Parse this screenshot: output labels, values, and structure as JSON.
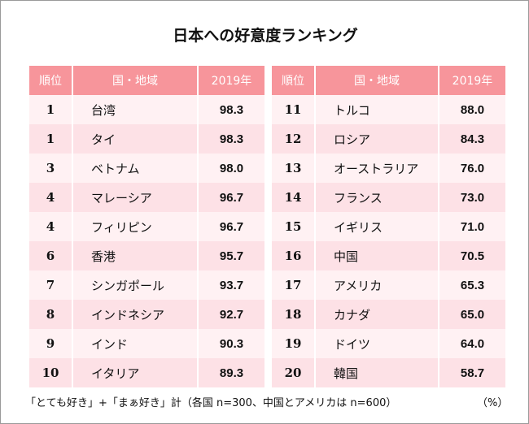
{
  "title": "日本への好意度ランキング",
  "headers": [
    "順位",
    "国・地域",
    "2019年"
  ],
  "colors": {
    "header": "#f7959b",
    "rank": "#e3637c",
    "row_light": "#fff1f3",
    "row_dark": "#fde1e6"
  },
  "chart_data": {
    "type": "table",
    "title": "日本への好意度ランキング",
    "columns": [
      "順位",
      "国・地域",
      "2019年"
    ],
    "rows": [
      [
        "1",
        "台湾",
        "98.3"
      ],
      [
        "1",
        "タイ",
        "98.3"
      ],
      [
        "3",
        "ベトナム",
        "98.0"
      ],
      [
        "4",
        "マレーシア",
        "96.7"
      ],
      [
        "4",
        "フィリピン",
        "96.7"
      ],
      [
        "6",
        "香港",
        "95.7"
      ],
      [
        "7",
        "シンガポール",
        "93.7"
      ],
      [
        "8",
        "インドネシア",
        "92.7"
      ],
      [
        "9",
        "インド",
        "90.3"
      ],
      [
        "10",
        "イタリア",
        "89.3"
      ],
      [
        "11",
        "トルコ",
        "88.0"
      ],
      [
        "12",
        "ロシア",
        "84.3"
      ],
      [
        "13",
        "オーストラリア",
        "76.0"
      ],
      [
        "14",
        "フランス",
        "73.0"
      ],
      [
        "15",
        "イギリス",
        "71.0"
      ],
      [
        "16",
        "中国",
        "70.5"
      ],
      [
        "17",
        "アメリカ",
        "65.3"
      ],
      [
        "18",
        "カナダ",
        "65.0"
      ],
      [
        "19",
        "ドイツ",
        "64.0"
      ],
      [
        "20",
        "韓国",
        "58.7"
      ]
    ]
  },
  "footnote": "「とても好き」+「まぁ好き」計（各国 n=300、中国とアメリカは n=600）",
  "unit": "（%）"
}
